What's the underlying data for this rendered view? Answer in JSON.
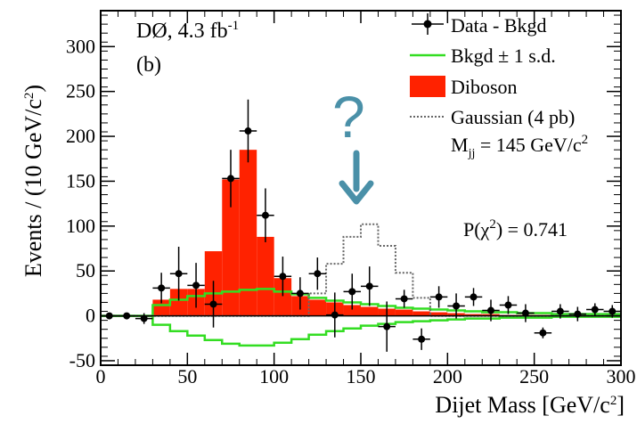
{
  "chart_data": {
    "type": "line",
    "experiment": "DØ, 4.3 fb",
    "luminosity_exp": "-1",
    "panel": "(b)",
    "ylabel": {
      "main": "Events / (10 GeV/c",
      "exp": "2",
      "tail": ")"
    },
    "xlabel": {
      "main": "Dijet Mass [GeV/c",
      "exp": "2",
      "tail": "]"
    },
    "xlim": [
      0,
      300
    ],
    "ylim": [
      -55,
      340
    ],
    "xticks": [
      0,
      50,
      100,
      150,
      200,
      250,
      300
    ],
    "yticks": [
      -50,
      0,
      50,
      100,
      150,
      200,
      250,
      300
    ],
    "legend": {
      "data": "Data - Bkgd",
      "bkgd": "Bkgd ± 1 s.d.",
      "diboson": "Diboson",
      "gaussian": "Gaussian (4 pb)",
      "mass_main": "M",
      "mass_sub": "jj",
      "mass_value": " = 145 GeV/c",
      "mass_exp": "2"
    },
    "pvalue": "P(χ",
    "pvalue_exp": "2",
    "pvalue_tail": ") = 0.741",
    "annotation": "?",
    "colors": {
      "diboson": "#ff2200",
      "bkgd_band": "#33dd22",
      "arrow": "#4a90a8",
      "gaussian": "#666666"
    },
    "bin_edges": [
      0,
      10,
      20,
      30,
      40,
      50,
      60,
      70,
      80,
      90,
      100,
      110,
      120,
      130,
      140,
      150,
      160,
      170,
      180,
      190,
      200,
      210,
      220,
      230,
      240,
      250,
      260,
      270,
      280,
      290,
      300
    ],
    "diboson_values": [
      0,
      0,
      0,
      18,
      30,
      30,
      72,
      152,
      185,
      88,
      42,
      22,
      18,
      15,
      12,
      10,
      8,
      7,
      5,
      4,
      3,
      2,
      2,
      1,
      1,
      1,
      0,
      0,
      0,
      0
    ],
    "gaussian_values": [
      0,
      0,
      0,
      0,
      0,
      0,
      0,
      0,
      0,
      0,
      0,
      0,
      25,
      58,
      88,
      102,
      78,
      48,
      20,
      0,
      0,
      0,
      0,
      0,
      0,
      0,
      0,
      0,
      0,
      0
    ],
    "bkgd_upper": [
      0,
      0,
      0,
      12,
      18,
      22,
      25,
      27,
      29,
      30,
      27,
      24,
      20,
      17,
      15,
      13,
      11,
      9,
      8,
      7,
      6,
      5,
      4,
      4,
      3,
      3,
      2,
      2,
      2,
      2
    ],
    "bkgd_lower": [
      0,
      0,
      0,
      -10,
      -17,
      -22,
      -27,
      -31,
      -33,
      -33,
      -30,
      -26,
      -21,
      -17,
      -14,
      -11,
      -9,
      -7,
      -6,
      -5,
      -4,
      -3,
      -3,
      -2,
      -2,
      -2,
      -1,
      -1,
      -1,
      -1
    ],
    "data_points": {
      "x": [
        5,
        15,
        25,
        35,
        45,
        55,
        65,
        75,
        85,
        95,
        105,
        115,
        125,
        135,
        145,
        155,
        165,
        175,
        185,
        195,
        205,
        215,
        225,
        235,
        245,
        255,
        265,
        275,
        285,
        295
      ],
      "y": [
        0,
        0,
        -3,
        31,
        47,
        34,
        13,
        153,
        206,
        112,
        44,
        25,
        47,
        1,
        27,
        33,
        -12,
        19,
        -26,
        21,
        11,
        21,
        6,
        12,
        3,
        -19,
        5,
        2,
        7,
        5
      ],
      "err": [
        2,
        3,
        6,
        17,
        30,
        25,
        26,
        32,
        35,
        30,
        22,
        18,
        18,
        25,
        20,
        22,
        28,
        10,
        12,
        12,
        14,
        10,
        12,
        10,
        10,
        6,
        8,
        8,
        7,
        7
      ]
    }
  }
}
